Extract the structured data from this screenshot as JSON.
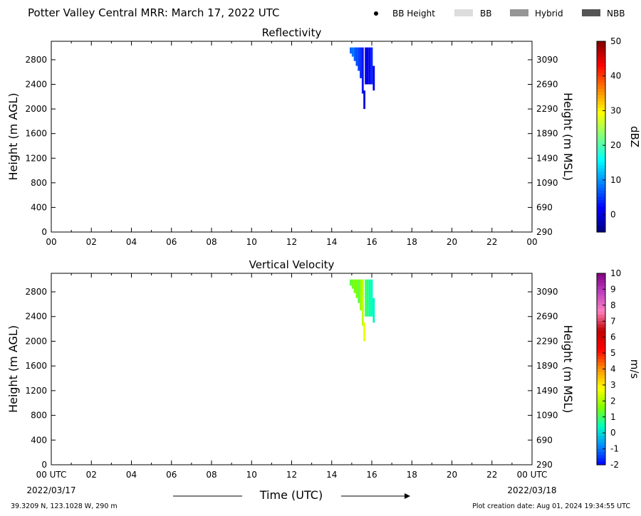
{
  "header": {
    "title": "Potter Valley Central MRR:  March 17, 2022 UTC",
    "legend": [
      {
        "label": "BB Height",
        "swatch": "dot",
        "color": "#000000"
      },
      {
        "label": "BB",
        "swatch": "bar",
        "color": "#dcdcdc"
      },
      {
        "label": "Hybrid",
        "swatch": "bar",
        "color": "#969696"
      },
      {
        "label": "NBB",
        "swatch": "bar",
        "color": "#555555"
      }
    ]
  },
  "footer": {
    "location": "39.3209 N, 123.1028 W, 290 m",
    "creation": "Plot creation date: Aug 01, 2024 19:34:55 UTC",
    "xlabel": "Time (UTC)",
    "start_date": "2022/03/17",
    "end_date": "2022/03/18"
  },
  "chart_data": [
    {
      "type": "heatmap",
      "title": "Reflectivity",
      "ylabel": "Height (m AGL)",
      "ylabel_right": "Height (m MSL)",
      "xlim": [
        0,
        24
      ],
      "ylim": [
        0,
        3100
      ],
      "x_ticks": [
        "00",
        "02",
        "04",
        "06",
        "08",
        "10",
        "12",
        "14",
        "16",
        "18",
        "20",
        "22",
        "00"
      ],
      "y_ticks": [
        0,
        400,
        800,
        1200,
        1600,
        2000,
        2400,
        2800
      ],
      "y_ticks_right": [
        290,
        690,
        1090,
        1490,
        1890,
        2290,
        2690,
        3090
      ],
      "colorbar": {
        "label": "dBZ",
        "min": -5,
        "max": 50,
        "ticks": [
          0,
          10,
          20,
          30,
          40,
          50
        ],
        "colors": [
          "#000080",
          "#0000ff",
          "#0080ff",
          "#00ffff",
          "#80ff80",
          "#ffff00",
          "#ff8000",
          "#ff0000",
          "#800000"
        ]
      },
      "columns": [
        {
          "t": 14.95,
          "bottom": 2900,
          "top": 3000,
          "v": 7
        },
        {
          "t": 15.05,
          "bottom": 2850,
          "top": 3000,
          "v": 8
        },
        {
          "t": 15.15,
          "bottom": 2780,
          "top": 3000,
          "v": 7
        },
        {
          "t": 15.25,
          "bottom": 2700,
          "top": 3000,
          "v": 6
        },
        {
          "t": 15.35,
          "bottom": 2620,
          "top": 3000,
          "v": 5
        },
        {
          "t": 15.45,
          "bottom": 2500,
          "top": 3000,
          "v": 4
        },
        {
          "t": 15.55,
          "bottom": 2250,
          "top": 3000,
          "v": 3
        },
        {
          "t": 15.63,
          "bottom": 2000,
          "top": 2300,
          "v": 0
        },
        {
          "t": 15.7,
          "bottom": 2400,
          "top": 3000,
          "v": 1
        },
        {
          "t": 15.8,
          "bottom": 2400,
          "top": 3000,
          "v": 0
        },
        {
          "t": 15.9,
          "bottom": 2400,
          "top": 3000,
          "v": 2
        },
        {
          "t": 16.0,
          "bottom": 2400,
          "top": 3000,
          "v": 4
        },
        {
          "t": 16.1,
          "bottom": 2300,
          "top": 2700,
          "v": 0
        }
      ]
    },
    {
      "type": "heatmap",
      "title": "Vertical Velocity",
      "ylabel": "Height (m AGL)",
      "ylabel_right": "Height (m MSL)",
      "xlim": [
        0,
        24
      ],
      "ylim": [
        0,
        3100
      ],
      "x_ticks": [
        "00 UTC",
        "02",
        "04",
        "06",
        "08",
        "10",
        "12",
        "14",
        "16",
        "18",
        "20",
        "22",
        "00 UTC"
      ],
      "y_ticks": [
        0,
        400,
        800,
        1200,
        1600,
        2000,
        2400,
        2800
      ],
      "y_ticks_right": [
        290,
        690,
        1090,
        1490,
        1890,
        2290,
        2690,
        3090
      ],
      "colorbar": {
        "label": "m/s",
        "min": -2,
        "max": 10,
        "ticks": [
          -2,
          -1,
          0,
          1,
          2,
          3,
          4,
          5,
          6,
          7,
          8,
          9,
          10
        ],
        "colors": [
          "#0000ff",
          "#0090ff",
          "#00ffc0",
          "#80ff00",
          "#ffff00",
          "#ff9000",
          "#ff0000",
          "#c00000",
          "#ff80c0",
          "#c040c0",
          "#800080"
        ]
      },
      "columns": [
        {
          "t": 14.95,
          "bottom": 2900,
          "top": 3000,
          "v": 1.2
        },
        {
          "t": 15.05,
          "bottom": 2850,
          "top": 3000,
          "v": 1.4
        },
        {
          "t": 15.15,
          "bottom": 2780,
          "top": 3000,
          "v": 1.5
        },
        {
          "t": 15.25,
          "bottom": 2700,
          "top": 3000,
          "v": 1.6
        },
        {
          "t": 15.35,
          "bottom": 2620,
          "top": 3000,
          "v": 1.2
        },
        {
          "t": 15.45,
          "bottom": 2500,
          "top": 3000,
          "v": 1.8
        },
        {
          "t": 15.55,
          "bottom": 2250,
          "top": 3000,
          "v": 2.2
        },
        {
          "t": 15.63,
          "bottom": 2000,
          "top": 2300,
          "v": 2.6
        },
        {
          "t": 15.7,
          "bottom": 2400,
          "top": 3000,
          "v": 1.0
        },
        {
          "t": 15.8,
          "bottom": 2400,
          "top": 3000,
          "v": 0.7
        },
        {
          "t": 15.9,
          "bottom": 2400,
          "top": 3000,
          "v": 0.5
        },
        {
          "t": 16.0,
          "bottom": 2400,
          "top": 3000,
          "v": 0.4
        },
        {
          "t": 16.1,
          "bottom": 2300,
          "top": 2700,
          "v": 0.3
        }
      ]
    }
  ]
}
